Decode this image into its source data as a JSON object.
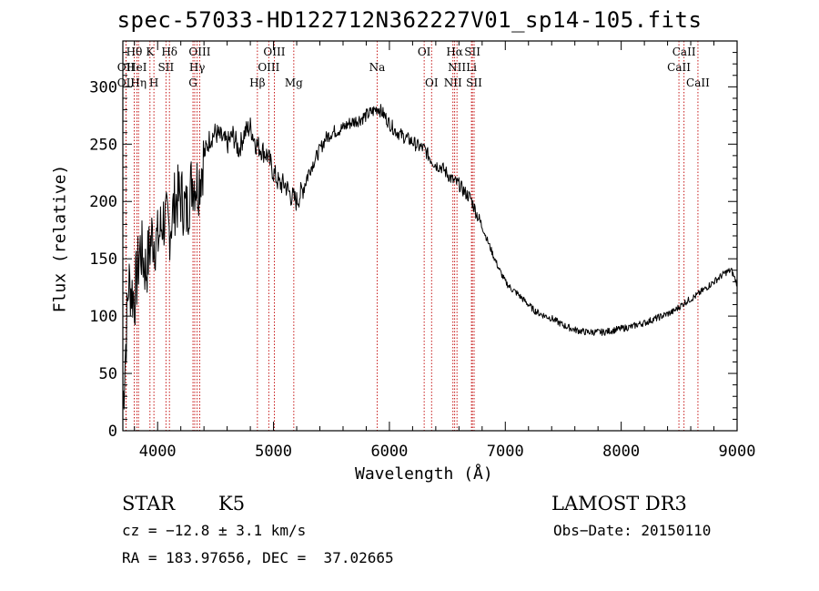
{
  "chart_data": {
    "type": "line",
    "title": "spec-57033-HD122712N362227V01_sp14-105.fits",
    "xlabel": "Wavelength (Å)",
    "ylabel": "Flux (relative)",
    "xlim": [
      3700,
      9000
    ],
    "ylim": [
      0,
      340
    ],
    "xticks": [
      4000,
      5000,
      6000,
      7000,
      8000,
      9000
    ],
    "xtick_labels": [
      "4000",
      "5000",
      "6000",
      "7000",
      "8000",
      "9000"
    ],
    "yticks": [
      0,
      50,
      100,
      150,
      200,
      250,
      300
    ],
    "ytick_labels": [
      "0",
      "50",
      "100",
      "150",
      "200",
      "250",
      "300"
    ],
    "grid": false,
    "series": [
      {
        "name": "flux",
        "x": [
          3700,
          3750,
          3800,
          3850,
          3900,
          3950,
          4000,
          4050,
          4100,
          4150,
          4200,
          4250,
          4300,
          4350,
          4400,
          4450,
          4500,
          4550,
          4600,
          4650,
          4700,
          4750,
          4800,
          4850,
          4900,
          4950,
          5000,
          5050,
          5100,
          5150,
          5200,
          5250,
          5300,
          5350,
          5400,
          5450,
          5500,
          5550,
          5600,
          5650,
          5700,
          5750,
          5800,
          5850,
          5900,
          5950,
          6000,
          6050,
          6100,
          6150,
          6200,
          6250,
          6300,
          6350,
          6400,
          6450,
          6500,
          6550,
          6600,
          6650,
          6700,
          6750,
          6800,
          6850,
          6900,
          6950,
          7000,
          7050,
          7100,
          7150,
          7200,
          7250,
          7300,
          7350,
          7400,
          7450,
          7500,
          7550,
          7600,
          7650,
          7700,
          7750,
          7800,
          7850,
          7900,
          7950,
          8000,
          8050,
          8100,
          8150,
          8200,
          8250,
          8300,
          8350,
          8400,
          8450,
          8500,
          8550,
          8600,
          8650,
          8700,
          8750,
          8800,
          8850,
          8900,
          8950,
          9000
        ],
        "y": [
          20,
          130,
          115,
          160,
          140,
          170,
          165,
          185,
          175,
          200,
          205,
          190,
          220,
          215,
          240,
          255,
          260,
          255,
          250,
          258,
          245,
          260,
          265,
          250,
          245,
          240,
          225,
          215,
          215,
          205,
          200,
          210,
          225,
          235,
          245,
          255,
          260,
          262,
          264,
          268,
          270,
          272,
          275,
          278,
          282,
          276,
          268,
          262,
          258,
          255,
          252,
          248,
          246,
          238,
          232,
          230,
          224,
          218,
          215,
          208,
          203,
          190,
          178,
          165,
          152,
          140,
          130,
          124,
          120,
          115,
          110,
          105,
          102,
          100,
          98,
          95,
          92,
          90,
          88,
          87,
          86,
          86,
          86,
          86,
          87,
          88,
          89,
          90,
          91,
          93,
          94,
          96,
          98,
          100,
          102,
          104,
          108,
          112,
          115,
          118,
          122,
          126,
          130,
          134,
          138,
          140,
          128
        ]
      }
    ],
    "line_markers": [
      {
        "label": "OII",
        "wavelength": 3727
      },
      {
        "label": "OII",
        "wavelength": 3727
      },
      {
        "label": "Hθ",
        "wavelength": 3798
      },
      {
        "label": "HeI",
        "wavelength": 3820
      },
      {
        "label": "Hη",
        "wavelength": 3835
      },
      {
        "label": "K",
        "wavelength": 3934
      },
      {
        "label": "H",
        "wavelength": 3968
      },
      {
        "label": "SII",
        "wavelength": 4072
      },
      {
        "label": "Hδ",
        "wavelength": 4102
      },
      {
        "label": "G",
        "wavelength": 4305
      },
      {
        "label": "OIII",
        "wavelength": 4320
      },
      {
        "label": "Hγ",
        "wavelength": 4341
      },
      {
        "label": "OIII",
        "wavelength": 4363
      },
      {
        "label": "Hβ",
        "wavelength": 4861
      },
      {
        "label": "OIII",
        "wavelength": 4959
      },
      {
        "label": "OIII",
        "wavelength": 5007
      },
      {
        "label": "Mg",
        "wavelength": 5175
      },
      {
        "label": "Na",
        "wavelength": 5894
      },
      {
        "label": "OI",
        "wavelength": 6300
      },
      {
        "label": "OI",
        "wavelength": 6364
      },
      {
        "label": "NII",
        "wavelength": 6548
      },
      {
        "label": "Hα",
        "wavelength": 6563
      },
      {
        "label": "NII",
        "wavelength": 6583
      },
      {
        "label": "Li",
        "wavelength": 6708
      },
      {
        "label": "SII",
        "wavelength": 6716
      },
      {
        "label": "SII",
        "wavelength": 6731
      },
      {
        "label": "CaII",
        "wavelength": 8498
      },
      {
        "label": "CaII",
        "wavelength": 8542
      },
      {
        "label": "CaII",
        "wavelength": 8662
      }
    ],
    "marker_labels": [
      {
        "text": "Hθ",
        "wavelength": 3798,
        "row": 1
      },
      {
        "text": "K",
        "wavelength": 3934,
        "row": 1
      },
      {
        "text": "Hδ",
        "wavelength": 4102,
        "row": 1
      },
      {
        "text": "OIII",
        "wavelength": 4363,
        "row": 1
      },
      {
        "text": "OIII",
        "wavelength": 5007,
        "row": 1
      },
      {
        "text": "OI",
        "wavelength": 6300,
        "row": 1
      },
      {
        "text": "Hα",
        "wavelength": 6563,
        "row": 1
      },
      {
        "text": "SII",
        "wavelength": 6716,
        "row": 1
      },
      {
        "text": "CaII",
        "wavelength": 8542,
        "row": 1
      },
      {
        "text": "OII",
        "wavelength": 3727,
        "row": 2
      },
      {
        "text": "HeI",
        "wavelength": 3820,
        "row": 2
      },
      {
        "text": "SII",
        "wavelength": 4072,
        "row": 2
      },
      {
        "text": "Hγ",
        "wavelength": 4341,
        "row": 2
      },
      {
        "text": "OIII",
        "wavelength": 4959,
        "row": 2
      },
      {
        "text": "Na",
        "wavelength": 5894,
        "row": 2
      },
      {
        "text": "NII",
        "wavelength": 6583,
        "row": 2
      },
      {
        "text": "Li",
        "wavelength": 6708,
        "row": 2
      },
      {
        "text": "CaII",
        "wavelength": 8498,
        "row": 2
      },
      {
        "text": "OII",
        "wavelength": 3727,
        "row": 3
      },
      {
        "text": "Hη",
        "wavelength": 3835,
        "row": 3
      },
      {
        "text": "H",
        "wavelength": 3968,
        "row": 3
      },
      {
        "text": "G",
        "wavelength": 4305,
        "row": 3
      },
      {
        "text": "Hβ",
        "wavelength": 4861,
        "row": 3
      },
      {
        "text": "Mg",
        "wavelength": 5175,
        "row": 3
      },
      {
        "text": "OI",
        "wavelength": 6364,
        "row": 3
      },
      {
        "text": "NII",
        "wavelength": 6548,
        "row": 3
      },
      {
        "text": "SII",
        "wavelength": 6731,
        "row": 3
      },
      {
        "text": "CaII",
        "wavelength": 8662,
        "row": 3
      }
    ]
  },
  "annotations": {
    "object_class": "STAR",
    "subclass": "K5",
    "survey": "LAMOST DR3",
    "cz": "cz = −12.8 ± 3.1 km/s",
    "obs_date": "Obs−Date: 20150110",
    "radec": "RA = 183.97656, DEC =  37.02665"
  },
  "colors": {
    "spectrum": "#000000",
    "marker": "#c00000",
    "axis": "#000000",
    "background": "#ffffff"
  }
}
